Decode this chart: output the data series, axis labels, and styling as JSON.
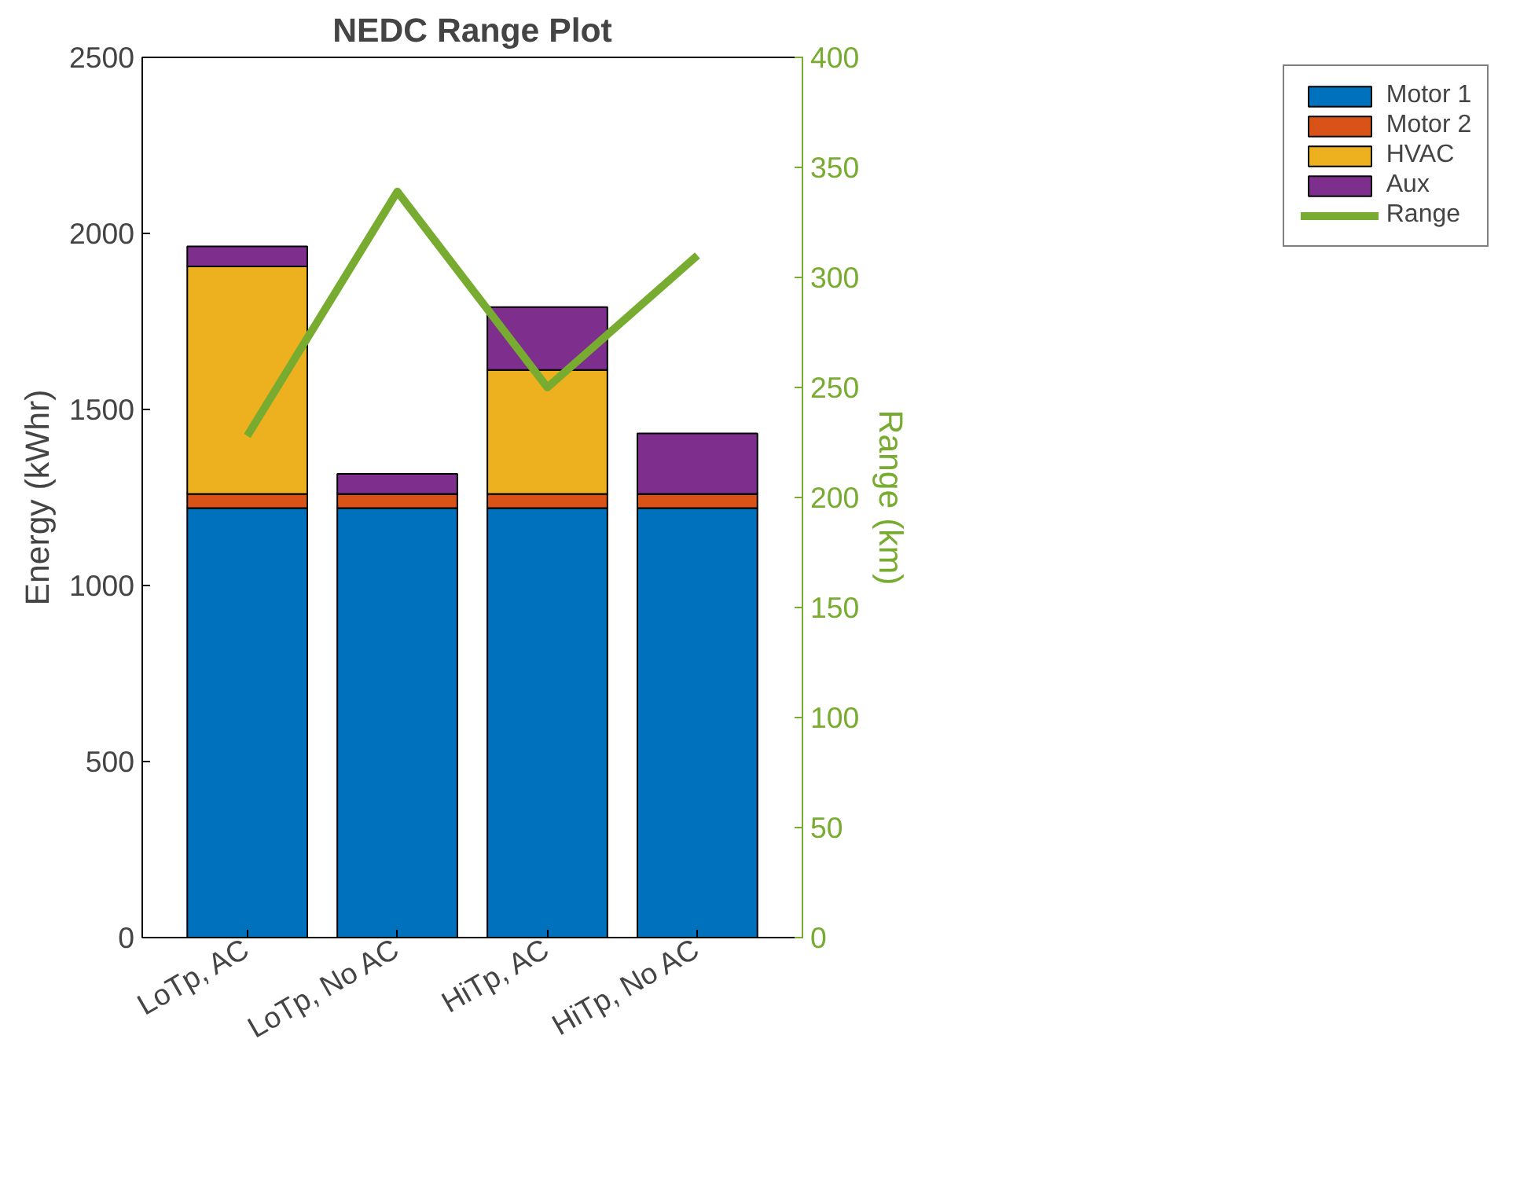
{
  "chart_data": {
    "type": "bar",
    "title": "NEDC Range Plot",
    "ylabel": "Energy (kWhr)",
    "y2label": "Range (km)",
    "categories": [
      "LoTp, AC",
      "LoTp, No AC",
      "HiTp, AC",
      "HiTp, No AC"
    ],
    "stacked": true,
    "ylim": [
      0,
      2500
    ],
    "yticks": [
      0,
      500,
      1000,
      1500,
      2000,
      2500
    ],
    "y2lim": [
      0,
      400
    ],
    "y2ticks": [
      0,
      50,
      100,
      150,
      200,
      250,
      300,
      350,
      400
    ],
    "legend": "top right",
    "grid": false,
    "series": [
      {
        "name": "Motor 1",
        "color": "#0072bd",
        "values": [
          1220,
          1220,
          1220,
          1220
        ]
      },
      {
        "name": "Motor 2",
        "color": "#d95319",
        "values": [
          40,
          40,
          40,
          40
        ]
      },
      {
        "name": "HVAC",
        "color": "#edb120",
        "values": [
          646,
          0,
          352,
          0
        ]
      },
      {
        "name": "Aux",
        "color": "#7e2f8e",
        "values": [
          57,
          57,
          179,
          172
        ]
      },
      {
        "name": "Range",
        "color": "#77ac30",
        "type": "line",
        "axis": "y2",
        "values": [
          228,
          339,
          250,
          310
        ]
      }
    ]
  }
}
